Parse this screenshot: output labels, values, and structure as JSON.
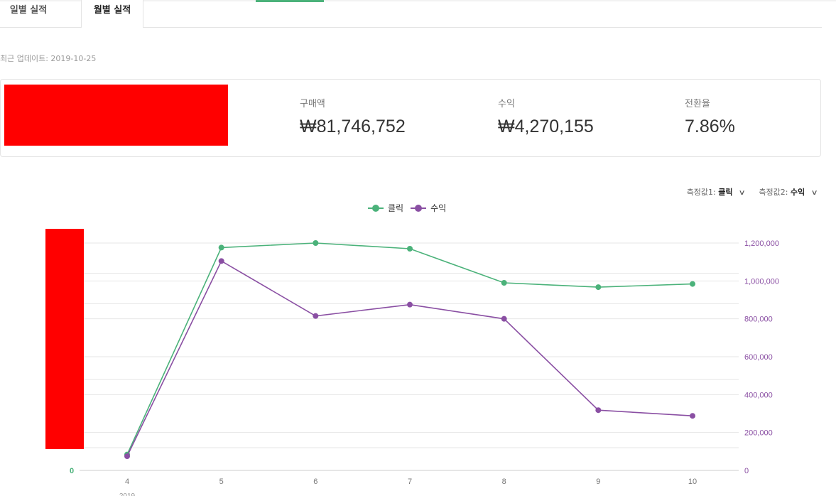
{
  "tabs": [
    {
      "label": "일별 실적",
      "active": false
    },
    {
      "label": "월별 실적",
      "active": true
    }
  ],
  "last_update": "최근 업데이트: 2019-10-25",
  "metrics": [
    {
      "label": "구매액",
      "value": "₩81,746,752"
    },
    {
      "label": "수익",
      "value": "₩4,270,155"
    },
    {
      "label": "전환율",
      "value": "7.86%"
    }
  ],
  "selectors": {
    "metric1_prefix": "측정값1:",
    "metric1_value": "클릭",
    "metric2_prefix": "측정값2:",
    "metric2_value": "수익"
  },
  "legend": [
    {
      "label": "클릭",
      "color": "#4bb27a"
    },
    {
      "label": "수익",
      "color": "#8a4fa3"
    }
  ],
  "chart_data": {
    "type": "line",
    "categories": [
      "4",
      "5",
      "6",
      "7",
      "8",
      "9",
      "10"
    ],
    "x_sub_label": "2019",
    "series": [
      {
        "name": "클릭",
        "color": "#4bb27a",
        "axis": "left",
        "values_relative": [
          0.07,
          0.98,
          1.0,
          0.975,
          0.825,
          0.806,
          0.82
        ]
      },
      {
        "name": "수익",
        "color": "#8a4fa3",
        "axis": "right",
        "values": [
          75000,
          1105000,
          815000,
          875000,
          800000,
          318000,
          288000
        ]
      }
    ],
    "left_axis": {
      "ticks": [
        "0"
      ],
      "color": "#4bb27a"
    },
    "right_axis": {
      "ticks": [
        "0",
        "200,000",
        "400,000",
        "600,000",
        "800,000",
        "1,000,000",
        "1,200,000"
      ],
      "ylim": [
        0,
        1200000
      ],
      "color": "#8a4fa3"
    },
    "grid": true
  }
}
